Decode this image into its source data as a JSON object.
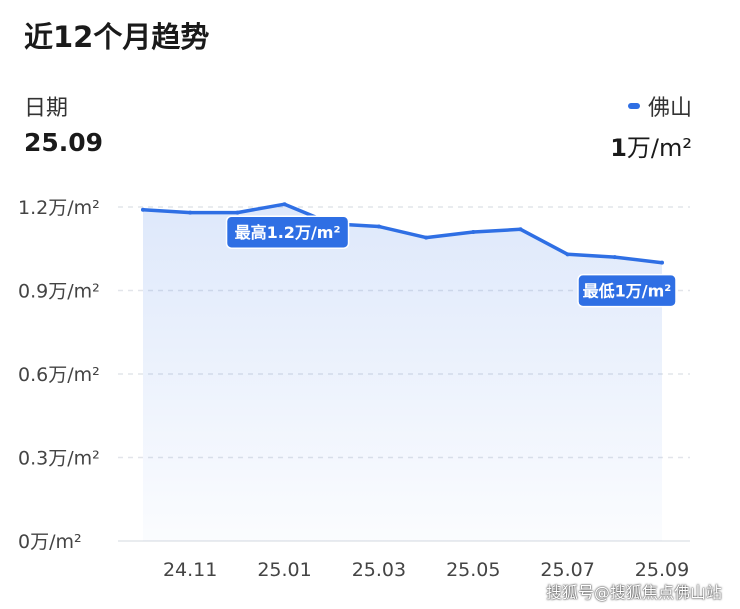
{
  "header": {
    "title": "近12个月趋势",
    "date_label": "日期",
    "date_value": "25.09"
  },
  "legend": {
    "series_name": "佛山",
    "value_num": "1",
    "value_unit": "万/m²",
    "color": "#2f6fe4"
  },
  "annotations": {
    "max_label": "最高1.2万/m²",
    "min_label": "最低1万/m²"
  },
  "watermark": "搜狐号@搜狐焦点佛山站",
  "chart_data": {
    "type": "area",
    "title": "近12个月趋势",
    "series": [
      {
        "name": "佛山",
        "x": [
          "24.10",
          "24.11",
          "24.12",
          "25.01",
          "25.02",
          "25.03",
          "25.04",
          "25.05",
          "25.06",
          "25.07",
          "25.08",
          "25.09"
        ],
        "values": [
          1.19,
          1.18,
          1.18,
          1.21,
          1.14,
          1.13,
          1.09,
          1.11,
          1.12,
          1.03,
          1.02,
          1.0
        ]
      }
    ],
    "x_tick_labels": [
      "24.11",
      "25.01",
      "25.03",
      "25.05",
      "25.07",
      "25.09"
    ],
    "y_tick_labels": [
      "0万/m²",
      "0.3万/m²",
      "0.6万/m²",
      "0.9万/m²",
      "1.2万/m²"
    ],
    "y_ticks": [
      0,
      0.3,
      0.6,
      0.9,
      1.2
    ],
    "ylim": [
      0,
      1.2
    ],
    "grid": true,
    "color": "#2f6fe4"
  }
}
